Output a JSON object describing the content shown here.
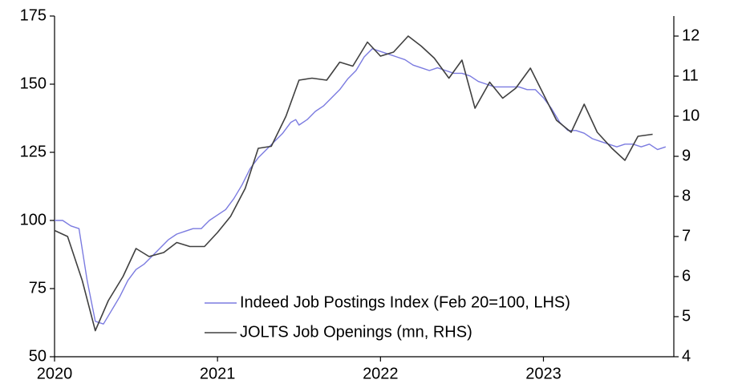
{
  "chart_data": {
    "type": "line",
    "xlim": [
      2020,
      2023.8
    ],
    "xticks": [
      2020,
      2021,
      2022,
      2023
    ],
    "ylim": [
      50,
      175
    ],
    "yticks": [
      50,
      75,
      100,
      125,
      150,
      175
    ],
    "y2lim": [
      4,
      12.5
    ],
    "y2ticks": [
      4,
      5,
      6,
      7,
      8,
      9,
      10,
      11,
      12
    ],
    "legend": "lower right",
    "series": [
      {
        "name": "Indeed Job Postings Index (Feb 20=100, LHS)",
        "color": "#7b7be0",
        "x": [
          2020.0,
          2020.05,
          2020.1,
          2020.15,
          2020.2,
          2020.25,
          2020.3,
          2020.35,
          2020.4,
          2020.45,
          2020.5,
          2020.55,
          2020.6,
          2020.65,
          2020.7,
          2020.75,
          2020.8,
          2020.85,
          2020.9,
          2020.95,
          2021.0,
          2021.05,
          2021.1,
          2021.15,
          2021.2,
          2021.25,
          2021.3,
          2021.35,
          2021.4,
          2021.45,
          2021.48,
          2021.5,
          2021.55,
          2021.6,
          2021.65,
          2021.7,
          2021.75,
          2021.8,
          2021.85,
          2021.9,
          2021.95,
          2022.0,
          2022.05,
          2022.1,
          2022.15,
          2022.2,
          2022.25,
          2022.3,
          2022.35,
          2022.4,
          2022.45,
          2022.5,
          2022.55,
          2022.6,
          2022.65,
          2022.7,
          2022.75,
          2022.8,
          2022.85,
          2022.9,
          2022.95,
          2023.0,
          2023.05,
          2023.1,
          2023.15,
          2023.2,
          2023.25,
          2023.3,
          2023.35,
          2023.4,
          2023.45,
          2023.5,
          2023.55,
          2023.6,
          2023.65,
          2023.7,
          2023.75
        ],
        "values": [
          100,
          100,
          98,
          97,
          78,
          63,
          62,
          67,
          72,
          78,
          82,
          84,
          87,
          90,
          93,
          95,
          96,
          97,
          97,
          100,
          102,
          104,
          108,
          113,
          119,
          123,
          126,
          129,
          132,
          136,
          137,
          135,
          137,
          140,
          142,
          145,
          148,
          152,
          155,
          160,
          163,
          162,
          161,
          160,
          159,
          157,
          156,
          155,
          156,
          155,
          154,
          154,
          153,
          151,
          150,
          149,
          149,
          149,
          149,
          148,
          148,
          145,
          141,
          136,
          133,
          133,
          132,
          130,
          129,
          128,
          127,
          128,
          128,
          127,
          128,
          126,
          127
        ]
      },
      {
        "name": "JOLTS Job Openings (mn, RHS)",
        "color": "#404040",
        "axis": "y2",
        "x": [
          2020.0,
          2020.08,
          2020.17,
          2020.25,
          2020.33,
          2020.42,
          2020.5,
          2020.58,
          2020.67,
          2020.75,
          2020.83,
          2020.92,
          2021.0,
          2021.08,
          2021.17,
          2021.25,
          2021.33,
          2021.42,
          2021.5,
          2021.58,
          2021.67,
          2021.75,
          2021.83,
          2021.92,
          2022.0,
          2022.08,
          2022.17,
          2022.25,
          2022.33,
          2022.42,
          2022.5,
          2022.58,
          2022.67,
          2022.75,
          2022.83,
          2022.92,
          2023.0,
          2023.08,
          2023.17,
          2023.25,
          2023.33,
          2023.42,
          2023.5,
          2023.58,
          2023.67
        ],
        "values": [
          7.15,
          7.0,
          5.9,
          4.65,
          5.4,
          6.0,
          6.7,
          6.5,
          6.6,
          6.85,
          6.75,
          6.75,
          7.1,
          7.5,
          8.2,
          9.2,
          9.25,
          10.0,
          10.9,
          10.95,
          10.9,
          11.35,
          11.25,
          11.85,
          11.5,
          11.6,
          12.0,
          11.75,
          11.45,
          10.95,
          11.4,
          10.2,
          10.85,
          10.45,
          10.7,
          11.2,
          10.55,
          9.9,
          9.6,
          10.3,
          9.6,
          9.2,
          8.9,
          9.5,
          9.55
        ]
      }
    ]
  }
}
